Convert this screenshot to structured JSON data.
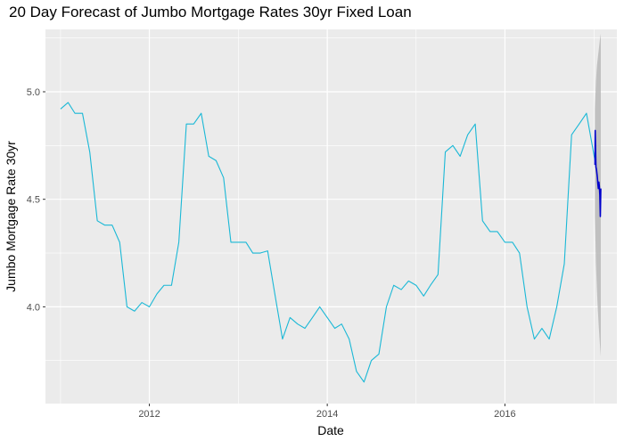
{
  "chart_data": {
    "type": "line",
    "title": "20 Day Forecast of Jumbo Mortgage Rates 30yr Fixed Loan",
    "xlabel": "Date",
    "ylabel": "Jumbo Mortgage Rate 30yr",
    "x_ticks": [
      "2012",
      "2014",
      "2016"
    ],
    "y_ticks": [
      "4.0",
      "4.5",
      "5.0"
    ],
    "xlim": [
      "2010-10-31",
      "2017-04-05"
    ],
    "ylim": [
      3.55,
      5.29
    ],
    "grid": true,
    "legend": "none",
    "colors": {
      "history": "#1ab8d6",
      "forecast": "#0000cc",
      "band": "#b8b8b8",
      "panel": "#ebebeb",
      "grid": "#ffffff"
    },
    "series": [
      {
        "role": "history",
        "x": [
          "2011-01-01",
          "2011-02-01",
          "2011-03-01",
          "2011-04-01",
          "2011-05-01",
          "2011-06-01",
          "2011-07-01",
          "2011-08-01",
          "2011-09-01",
          "2011-10-01",
          "2011-11-01",
          "2011-12-01",
          "2012-01-01",
          "2012-02-01",
          "2012-03-01",
          "2012-04-01",
          "2012-05-01",
          "2012-06-01",
          "2012-07-01",
          "2012-08-01",
          "2012-09-01",
          "2012-10-01",
          "2012-11-01",
          "2012-12-01",
          "2013-01-01",
          "2013-02-01",
          "2013-03-01",
          "2013-04-01",
          "2013-05-01",
          "2013-06-01",
          "2013-07-01",
          "2013-08-01",
          "2013-09-01",
          "2013-10-01",
          "2013-11-01",
          "2013-12-01",
          "2014-01-01",
          "2014-02-01",
          "2014-03-01",
          "2014-04-01",
          "2014-05-01",
          "2014-06-01",
          "2014-07-01",
          "2014-08-01",
          "2014-09-01",
          "2014-10-01",
          "2014-11-01",
          "2014-12-01",
          "2015-01-01",
          "2015-02-01",
          "2015-03-01",
          "2015-04-01",
          "2015-05-01",
          "2015-06-01",
          "2015-07-01",
          "2015-08-01",
          "2015-09-01",
          "2015-10-01",
          "2015-11-01",
          "2015-12-01",
          "2016-01-01",
          "2016-02-01",
          "2016-03-01",
          "2016-04-01",
          "2016-05-01",
          "2016-06-01",
          "2016-07-01",
          "2016-08-01",
          "2016-09-01",
          "2016-10-01",
          "2016-11-01",
          "2016-12-01",
          "2017-01-05"
        ],
        "y": [
          4.92,
          4.95,
          4.9,
          4.9,
          4.72,
          4.4,
          4.38,
          4.38,
          4.3,
          4.0,
          3.98,
          4.02,
          4.0,
          4.06,
          4.1,
          4.1,
          4.3,
          4.85,
          4.85,
          4.9,
          4.7,
          4.68,
          4.6,
          4.3,
          4.3,
          4.3,
          4.25,
          4.25,
          4.26,
          4.05,
          3.85,
          3.95,
          3.92,
          3.9,
          3.95,
          4.0,
          3.95,
          3.9,
          3.92,
          3.85,
          3.7,
          3.65,
          3.75,
          3.78,
          4.0,
          4.1,
          4.08,
          4.12,
          4.1,
          4.05,
          4.1,
          4.15,
          4.72,
          4.75,
          4.7,
          4.8,
          4.85,
          4.4,
          4.35,
          4.35,
          4.3,
          4.3,
          4.25,
          4.0,
          3.85,
          3.9,
          3.85,
          4.0,
          4.2,
          4.8,
          4.85,
          4.9,
          4.68
        ]
      },
      {
        "role": "forecast",
        "x": [
          "2017-01-05",
          "2017-01-06",
          "2017-01-08",
          "2017-01-09",
          "2017-01-11",
          "2017-01-13",
          "2017-01-15",
          "2017-01-17",
          "2017-01-19",
          "2017-01-21",
          "2017-01-23",
          "2017-01-25",
          "2017-01-27",
          "2017-01-29"
        ],
        "y": [
          4.66,
          4.82,
          4.7,
          4.65,
          4.64,
          4.62,
          4.6,
          4.57,
          4.55,
          4.58,
          4.56,
          4.52,
          4.42,
          4.55
        ]
      }
    ],
    "band": {
      "x": [
        "2017-01-05",
        "2017-01-09",
        "2017-01-13",
        "2017-01-17",
        "2017-01-21",
        "2017-01-25",
        "2017-01-29"
      ],
      "upper": [
        4.92,
        5.05,
        5.12,
        5.16,
        5.2,
        5.24,
        5.27
      ],
      "lower": [
        4.42,
        4.2,
        4.08,
        3.98,
        3.9,
        3.83,
        3.77
      ]
    }
  }
}
